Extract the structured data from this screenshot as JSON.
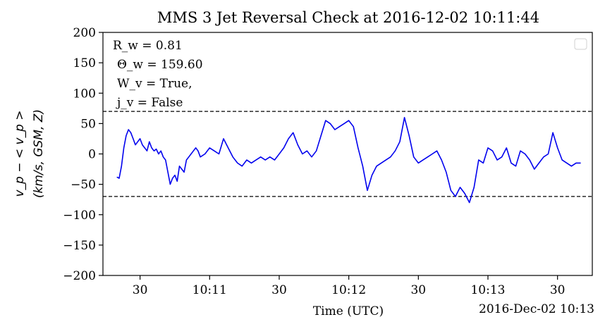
{
  "chart_data": {
    "type": "line",
    "title": "MMS 3 Jet Reversal Check at 2016-12-02 10:11:44",
    "xlabel": "Time (UTC)",
    "x_offset_label": "2016-Dec-02 10:13",
    "ylabel_line1": "v_p − < v_p >",
    "ylabel_line2": "(km/s, GSM, Z)",
    "ylim": [
      -200,
      200
    ],
    "yticks": [
      -200,
      -150,
      -100,
      -50,
      0,
      50,
      100,
      150,
      200
    ],
    "ytick_labels": [
      "−200",
      "−150",
      "−100",
      "−50",
      "0",
      "50",
      "100",
      "150",
      "200"
    ],
    "xlim": [
      "10:10:14",
      "10:13:45"
    ],
    "xticks": [
      "10:10:30",
      "10:11:00",
      "10:11:30",
      "10:12:00",
      "10:12:30",
      "10:13:00",
      "10:13:30"
    ],
    "xtick_labels": [
      "30",
      "10:11",
      "30",
      "10:12",
      "30",
      "10:13",
      "30"
    ],
    "thresholds": [
      70,
      -70
    ],
    "line_color": "#0000ee",
    "legend": "empty box, top-right",
    "annotations": {
      "rw": "R_w = 0.81",
      "theta": "Θ_w = 159.60",
      "wv": "W_v = True,",
      "jv": "j_v = False"
    },
    "series": [
      {
        "x": [
          "10:10:20",
          "10:10:21",
          "10:10:22",
          "10:10:23",
          "10:10:24",
          "10:10:25",
          "10:10:26",
          "10:10:27",
          "10:10:28",
          "10:10:29",
          "10:10:30",
          "10:10:31",
          "10:10:32",
          "10:10:33",
          "10:10:34",
          "10:10:35",
          "10:10:36",
          "10:10:37",
          "10:10:38",
          "10:10:39",
          "10:10:40",
          "10:10:41",
          "10:10:42",
          "10:10:43",
          "10:10:44",
          "10:10:45",
          "10:10:46",
          "10:10:47",
          "10:10:48",
          "10:10:49",
          "10:10:50",
          "10:10:51",
          "10:10:52",
          "10:10:53",
          "10:10:54",
          "10:10:55",
          "10:10:56",
          "10:10:58",
          "10:11:00",
          "10:11:02",
          "10:11:04",
          "10:11:06",
          "10:11:08",
          "10:11:10",
          "10:11:12",
          "10:11:14",
          "10:11:16",
          "10:11:18",
          "10:11:20",
          "10:11:22",
          "10:11:24",
          "10:11:26",
          "10:11:28",
          "10:11:30",
          "10:11:32",
          "10:11:34",
          "10:11:36",
          "10:11:38",
          "10:11:40",
          "10:11:42",
          "10:11:44",
          "10:11:46",
          "10:11:48",
          "10:11:50",
          "10:11:52",
          "10:11:54",
          "10:11:56",
          "10:11:58",
          "10:12:00",
          "10:12:02",
          "10:12:04",
          "10:12:06",
          "10:12:08",
          "10:12:10",
          "10:12:12",
          "10:12:14",
          "10:12:16",
          "10:12:18",
          "10:12:20",
          "10:12:22",
          "10:12:24",
          "10:12:26",
          "10:12:28",
          "10:12:30",
          "10:12:32",
          "10:12:34",
          "10:12:36",
          "10:12:38",
          "10:12:40",
          "10:12:42",
          "10:12:44",
          "10:12:46",
          "10:12:48",
          "10:12:50",
          "10:12:52",
          "10:12:54",
          "10:12:56",
          "10:12:58",
          "10:13:00",
          "10:13:02",
          "10:13:04",
          "10:13:06",
          "10:13:08",
          "10:13:10",
          "10:13:12",
          "10:13:14",
          "10:13:16",
          "10:13:18",
          "10:13:20",
          "10:13:22",
          "10:13:24",
          "10:13:26",
          "10:13:28",
          "10:13:30",
          "10:13:32",
          "10:13:34",
          "10:13:36",
          "10:13:38",
          "10:13:40"
        ],
        "y": [
          -38,
          -40,
          -20,
          10,
          30,
          40,
          35,
          25,
          15,
          20,
          25,
          15,
          10,
          5,
          20,
          10,
          5,
          8,
          0,
          5,
          -5,
          -10,
          -30,
          -50,
          -40,
          -35,
          -45,
          -20,
          -25,
          -30,
          -10,
          -5,
          0,
          5,
          10,
          5,
          -5,
          0,
          10,
          5,
          0,
          25,
          10,
          -5,
          -15,
          -20,
          -10,
          -15,
          -10,
          -5,
          -10,
          -5,
          -10,
          0,
          10,
          25,
          35,
          15,
          0,
          5,
          -5,
          5,
          30,
          55,
          50,
          40,
          45,
          50,
          55,
          45,
          10,
          -20,
          -60,
          -35,
          -20,
          -15,
          -10,
          -5,
          5,
          20,
          60,
          30,
          -5,
          -15,
          -10,
          -5,
          0,
          5,
          -10,
          -30,
          -60,
          -70,
          -55,
          -65,
          -80,
          -55,
          -10,
          -15,
          10,
          5,
          -10,
          -5,
          10,
          -15,
          -20,
          5,
          0,
          -10,
          -25,
          -15,
          -5,
          0,
          35,
          10,
          -10,
          -15,
          -20,
          -15,
          -15
        ]
      }
    ]
  }
}
